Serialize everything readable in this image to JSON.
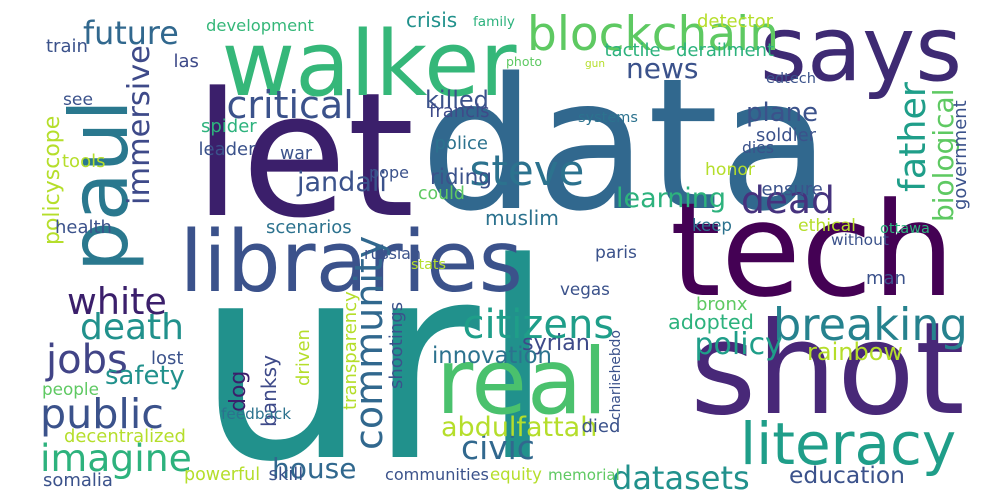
{
  "words": [
    {
      "text": "url",
      "color": "#21918c",
      "rotated": false
    },
    {
      "text": "let",
      "color": "#3b1f6b",
      "rotated": false
    },
    {
      "text": "data",
      "color": "#31688e",
      "rotated": false
    },
    {
      "text": "tech",
      "color": "#440154",
      "rotated": false
    },
    {
      "text": "shot",
      "color": "#482878",
      "rotated": false
    },
    {
      "text": "says",
      "color": "#3e2a73",
      "rotated": false
    },
    {
      "text": "walker",
      "color": "#35b779",
      "rotated": false
    },
    {
      "text": "paul",
      "color": "#2a788e",
      "rotated": true
    },
    {
      "text": "libraries",
      "color": "#3b528b",
      "rotated": false
    },
    {
      "text": "real",
      "color": "#4ac16d",
      "rotated": false
    },
    {
      "text": "literacy",
      "color": "#1f9e89",
      "rotated": false
    },
    {
      "text": "breaking",
      "color": "#26828e",
      "rotated": false
    },
    {
      "text": "blockchain",
      "color": "#5ec962",
      "rotated": false
    },
    {
      "text": "community",
      "color": "#31688e",
      "rotated": true
    },
    {
      "text": "critical",
      "color": "#3b528b",
      "rotated": false
    },
    {
      "text": "steve",
      "color": "#2c728e",
      "rotated": false
    },
    {
      "text": "dead",
      "color": "#46327e",
      "rotated": false
    },
    {
      "text": "father",
      "color": "#1f9e89",
      "rotated": true
    },
    {
      "text": "imagine",
      "color": "#2db27d",
      "rotated": false
    },
    {
      "text": "public",
      "color": "#3b528b",
      "rotated": false
    },
    {
      "text": "citizens",
      "color": "#1f9e89",
      "rotated": false
    },
    {
      "text": "jobs",
      "color": "#414487",
      "rotated": false
    },
    {
      "text": "death",
      "color": "#21918c",
      "rotated": false
    },
    {
      "text": "white",
      "color": "#3b1f6b",
      "rotated": false
    },
    {
      "text": "civic",
      "color": "#31688e",
      "rotated": false
    },
    {
      "text": "immersive",
      "color": "#3e4a89",
      "rotated": true
    },
    {
      "text": "news",
      "color": "#3b528b",
      "rotated": false
    },
    {
      "text": "future",
      "color": "#31688e",
      "rotated": false
    },
    {
      "text": "policy",
      "color": "#1f9e89",
      "rotated": false
    },
    {
      "text": "learning",
      "color": "#2db27d",
      "rotated": false
    },
    {
      "text": "biological",
      "color": "#5ec962",
      "rotated": true
    },
    {
      "text": "syrian",
      "color": "#3e4a89",
      "rotated": false
    },
    {
      "text": "datasets",
      "color": "#21918c",
      "rotated": false
    },
    {
      "text": "abdulfattah",
      "color": "#b5de2b",
      "rotated": false
    },
    {
      "text": "house",
      "color": "#31688e",
      "rotated": false
    },
    {
      "text": "policyscope",
      "color": "#b5de2b",
      "rotated": true
    },
    {
      "text": "safety",
      "color": "#21918c",
      "rotated": false
    },
    {
      "text": "innovation",
      "color": "#2c728e",
      "rotated": false
    },
    {
      "text": "rainbow",
      "color": "#b5de2b",
      "rotated": false
    },
    {
      "text": "education",
      "color": "#3b528b",
      "rotated": false
    },
    {
      "text": "muslim",
      "color": "#2c728e",
      "rotated": false
    },
    {
      "text": "jandali",
      "color": "#3b528b",
      "rotated": false
    },
    {
      "text": "riding",
      "color": "#3b528b",
      "rotated": false
    },
    {
      "text": "dog",
      "color": "#3b1f6b",
      "rotated": true
    },
    {
      "text": "banksy",
      "color": "#3e4a89",
      "rotated": true
    },
    {
      "text": "plane",
      "color": "#3b528b",
      "rotated": false
    },
    {
      "text": "adopted",
      "color": "#2db27d",
      "rotated": false
    },
    {
      "text": "killed",
      "color": "#3b528b",
      "rotated": false
    },
    {
      "text": "development",
      "color": "#35b779",
      "rotated": false
    },
    {
      "text": "crisis",
      "color": "#21918c",
      "rotated": false
    },
    {
      "text": "family",
      "color": "#2db27d",
      "rotated": false
    },
    {
      "text": "detector",
      "color": "#b5de2b",
      "rotated": false
    },
    {
      "text": "train",
      "color": "#3b528b",
      "rotated": false
    },
    {
      "text": "las",
      "color": "#3e4a89",
      "rotated": false
    },
    {
      "text": "photo",
      "color": "#5ec962",
      "rotated": false
    },
    {
      "text": "gun",
      "color": "#b5de2b",
      "rotated": false
    },
    {
      "text": "tactile",
      "color": "#2db27d",
      "rotated": false
    },
    {
      "text": "derailment",
      "color": "#2db27d",
      "rotated": false
    },
    {
      "text": "edtech",
      "color": "#3b528b",
      "rotated": false
    },
    {
      "text": "see",
      "color": "#3b528b",
      "rotated": false
    },
    {
      "text": "francis",
      "color": "#3e4a89",
      "rotated": false
    },
    {
      "text": "systems",
      "color": "#2c728e",
      "rotated": false
    },
    {
      "text": "spider",
      "color": "#2db27d",
      "rotated": false
    },
    {
      "text": "soldier",
      "color": "#3b528b",
      "rotated": false
    },
    {
      "text": "leader",
      "color": "#3b528b",
      "rotated": false
    },
    {
      "text": "war",
      "color": "#3b528b",
      "rotated": false
    },
    {
      "text": "police",
      "color": "#2c728e",
      "rotated": false
    },
    {
      "text": "dies",
      "color": "#3b528b",
      "rotated": false
    },
    {
      "text": "tools",
      "color": "#b5de2b",
      "rotated": false
    },
    {
      "text": "pope",
      "color": "#3b528b",
      "rotated": false
    },
    {
      "text": "could",
      "color": "#5ec962",
      "rotated": false
    },
    {
      "text": "honor",
      "color": "#b5de2b",
      "rotated": false
    },
    {
      "text": "ensure",
      "color": "#3b528b",
      "rotated": false
    },
    {
      "text": "government",
      "color": "#3b528b",
      "rotated": true
    },
    {
      "text": "health",
      "color": "#3b528b",
      "rotated": false
    },
    {
      "text": "scenarios",
      "color": "#2c728e",
      "rotated": false
    },
    {
      "text": "keep",
      "color": "#2c728e",
      "rotated": false
    },
    {
      "text": "ethical",
      "color": "#b5de2b",
      "rotated": false
    },
    {
      "text": "without",
      "color": "#3b528b",
      "rotated": false
    },
    {
      "text": "ottawa",
      "color": "#2db27d",
      "rotated": false
    },
    {
      "text": "russian",
      "color": "#3b528b",
      "rotated": false
    },
    {
      "text": "paris",
      "color": "#3b528b",
      "rotated": false
    },
    {
      "text": "stats",
      "color": "#b5de2b",
      "rotated": false
    },
    {
      "text": "vegas",
      "color": "#3b528b",
      "rotated": false
    },
    {
      "text": "man",
      "color": "#3b528b",
      "rotated": false
    },
    {
      "text": "bronx",
      "color": "#5ec962",
      "rotated": false
    },
    {
      "text": "transparency",
      "color": "#b5de2b",
      "rotated": true
    },
    {
      "text": "shootings",
      "color": "#3b528b",
      "rotated": true
    },
    {
      "text": "driven",
      "color": "#b5de2b",
      "rotated": true
    },
    {
      "text": "charliehebdo",
      "color": "#3b528b",
      "rotated": true
    },
    {
      "text": "lost",
      "color": "#3b528b",
      "rotated": false
    },
    {
      "text": "people",
      "color": "#5ec962",
      "rotated": false
    },
    {
      "text": "feedback",
      "color": "#2c728e",
      "rotated": false
    },
    {
      "text": "decentralized",
      "color": "#b5de2b",
      "rotated": false
    },
    {
      "text": "died",
      "color": "#3b528b",
      "rotated": false
    },
    {
      "text": "powerful",
      "color": "#b5de2b",
      "rotated": false
    },
    {
      "text": "skill",
      "color": "#3b528b",
      "rotated": false
    },
    {
      "text": "equity",
      "color": "#b5de2b",
      "rotated": false
    },
    {
      "text": "memorial",
      "color": "#5ec962",
      "rotated": false
    },
    {
      "text": "communities",
      "color": "#3b528b",
      "rotated": false
    },
    {
      "text": "somalia",
      "color": "#3b528b",
      "rotated": false
    }
  ]
}
